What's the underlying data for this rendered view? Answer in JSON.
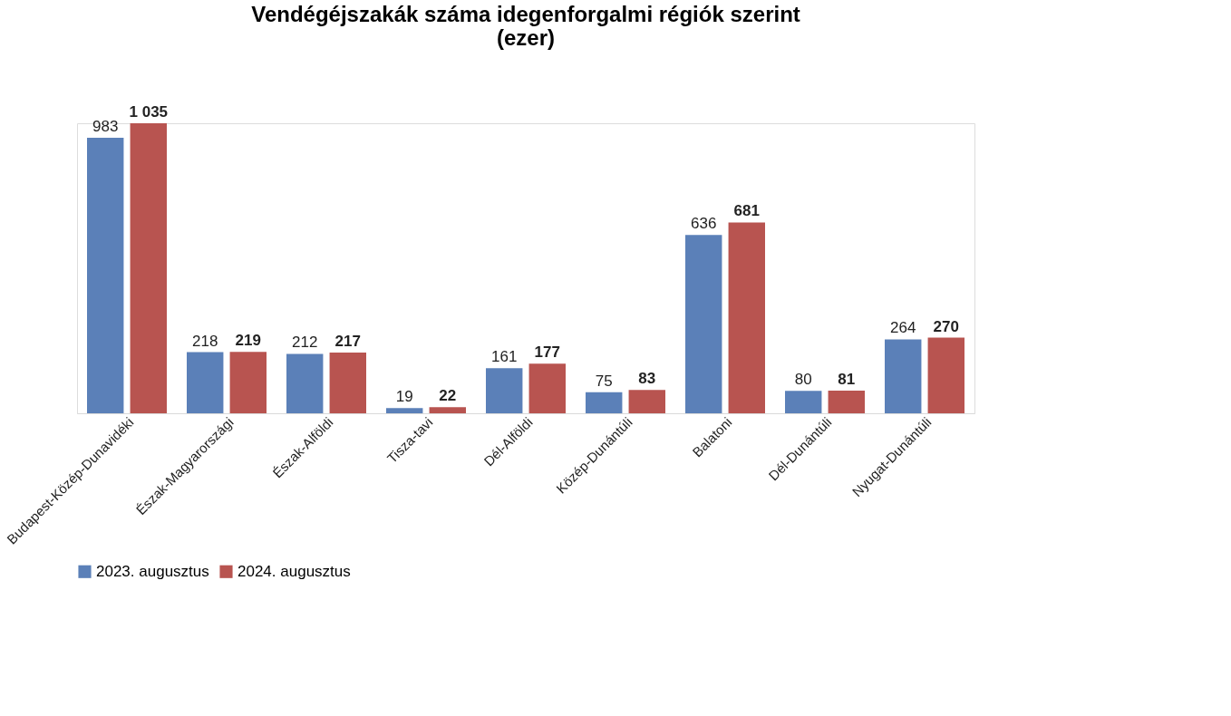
{
  "chart_data": {
    "type": "bar",
    "title": "Vendégéjszakák száma idegenforgalmi régiók szerint (ezer)",
    "categories": [
      "Budapest-Közép-Dunavidéki",
      "Észak-Magyarországi",
      "Észak-Alföldi",
      "Tisza-tavi",
      "Dél-Alföldi",
      "Közép-Dunántúli",
      "Balatoni",
      "Dél-Dunántúli",
      "Nyugat-Dunántúli"
    ],
    "series": [
      {
        "name": "2023. augusztus",
        "color": "#5b80b8",
        "values": [
          983,
          218,
          212,
          19,
          161,
          75,
          636,
          80,
          264
        ],
        "value_labels": [
          "983",
          "218",
          "212",
          "19",
          "161",
          "75",
          "636",
          "80",
          "264"
        ]
      },
      {
        "name": "2024. augusztus",
        "color": "#b85450",
        "values": [
          1035,
          219,
          217,
          22,
          177,
          83,
          681,
          81,
          270
        ],
        "value_labels": [
          "1 035",
          "219",
          "217",
          "22",
          "177",
          "83",
          "681",
          "81",
          "270"
        ]
      }
    ],
    "tick_labels": "x",
    "grid": false,
    "legend": "bottom"
  }
}
